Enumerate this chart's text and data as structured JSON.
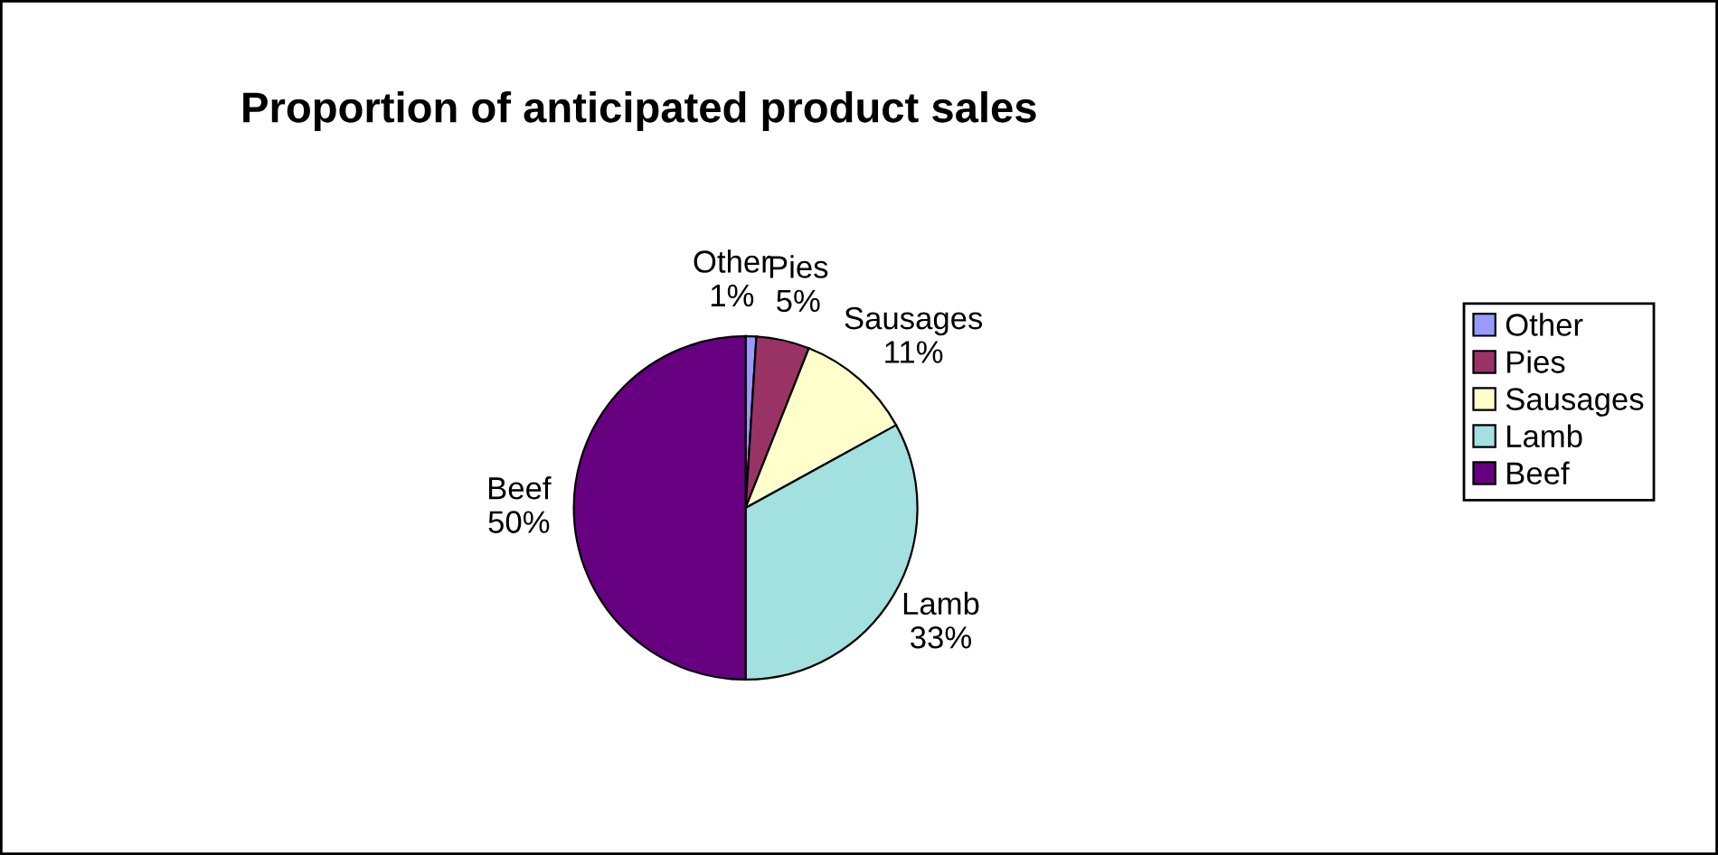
{
  "chart_data": {
    "type": "pie",
    "title": "Proportion of anticipated product sales",
    "categories": [
      "Other",
      "Pies",
      "Sausages",
      "Lamb",
      "Beef"
    ],
    "values": [
      1,
      5,
      11,
      33,
      50
    ],
    "value_labels": [
      "1%",
      "5%",
      "11%",
      "33%",
      "50%"
    ],
    "colors": [
      "#9999ff",
      "#993366",
      "#ffffcc",
      "#a3e0e0",
      "#660080"
    ],
    "legend": "right"
  }
}
